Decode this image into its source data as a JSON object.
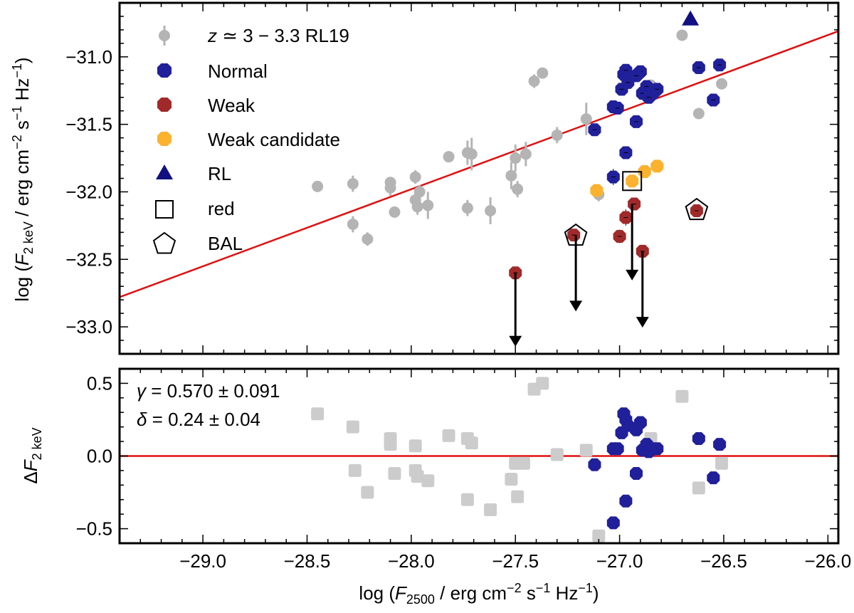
{
  "chart_data": [
    {
      "type": "scatter",
      "panel": "top",
      "ylabel": "log (F_2 keV / erg cm^-2 s^-1 Hz^-1)",
      "xlim": [
        -29.4,
        -25.95
      ],
      "ylim": [
        -33.2,
        -30.6
      ],
      "yticks": [
        -33.0,
        -32.5,
        -32.0,
        -31.5,
        -31.0
      ],
      "ytick_labels": [
        "−33.0",
        "−32.5",
        "−32.0",
        "−31.5",
        "−31.0"
      ],
      "fit_line": {
        "name": "relation",
        "color": "#e01010",
        "points": [
          [
            -29.4,
            -32.78
          ],
          [
            -25.95,
            -30.81
          ]
        ]
      },
      "legend": {
        "placement": "top-left",
        "entries": [
          {
            "key": "rl19",
            "label": "z ≃ 3 − 3.3 RL19",
            "label_italic": "z",
            "label_rest": " ≃ 3 − 3.3 RL19"
          },
          {
            "key": "normal",
            "label": "Normal"
          },
          {
            "key": "weak",
            "label": "Weak"
          },
          {
            "key": "weakcand",
            "label": "Weak candidate"
          },
          {
            "key": "rl",
            "label": "RL"
          },
          {
            "key": "red",
            "label": "red"
          },
          {
            "key": "bal",
            "label": "BAL"
          }
        ]
      },
      "series": [
        {
          "name": "RL19",
          "key": "rl19",
          "color": "#b4b4b4",
          "points": [
            [
              -28.45,
              -31.96,
              0.02
            ],
            [
              -28.28,
              -31.94,
              0.06
            ],
            [
              -28.28,
              -32.24,
              0.06
            ],
            [
              -28.21,
              -32.35,
              0.05
            ],
            [
              -28.1,
              -31.93,
              0.04
            ],
            [
              -28.1,
              -31.97,
              0.06
            ],
            [
              -28.08,
              -32.15,
              0.03
            ],
            [
              -27.98,
              -31.89,
              0.05
            ],
            [
              -27.98,
              -32.06,
              0.06
            ],
            [
              -27.96,
              -32.0,
              0.05
            ],
            [
              -27.97,
              -32.11,
              0.06
            ],
            [
              -27.92,
              -32.1,
              0.1
            ],
            [
              -27.82,
              -31.74,
              0.04
            ],
            [
              -27.73,
              -31.71,
              0.09
            ],
            [
              -27.71,
              -31.72,
              0.12
            ],
            [
              -27.73,
              -32.12,
              0.06
            ],
            [
              -27.62,
              -32.14,
              0.1
            ],
            [
              -27.52,
              -31.88,
              0.1
            ],
            [
              -27.5,
              -31.75,
              0.1
            ],
            [
              -27.49,
              -31.98,
              0.06
            ],
            [
              -27.45,
              -31.72,
              0.09
            ],
            [
              -27.41,
              -31.18,
              0.05
            ],
            [
              -27.37,
              -31.12,
              0.02
            ],
            [
              -27.3,
              -31.58,
              0.06
            ],
            [
              -27.16,
              -31.46,
              0.12
            ],
            [
              -27.1,
              -32.02,
              0.05
            ],
            [
              -26.85,
              -31.21,
              0.03
            ],
            [
              -26.7,
              -30.84,
              0.01
            ],
            [
              -26.62,
              -31.42,
              0.02
            ],
            [
              -26.51,
              -31.2,
              0.02
            ]
          ]
        },
        {
          "name": "Normal",
          "key": "normal",
          "color": "#20209a",
          "points": [
            [
              -27.12,
              -31.54,
              0.02
            ],
            [
              -27.03,
              -31.37,
              0.02
            ],
            [
              -27.01,
              -31.38,
              0.02
            ],
            [
              -26.98,
              -31.13,
              0.02
            ],
            [
              -26.99,
              -31.24,
              0.02
            ],
            [
              -26.97,
              -31.1,
              0.02
            ],
            [
              -26.96,
              -31.19,
              0.02
            ],
            [
              -26.9,
              -31.11,
              0.02
            ],
            [
              -26.92,
              -31.14,
              0.02
            ],
            [
              -26.92,
              -31.48,
              0.02
            ],
            [
              -26.89,
              -31.27,
              0.02
            ],
            [
              -26.87,
              -31.22,
              0.02
            ],
            [
              -26.84,
              -31.27,
              0.02
            ],
            [
              -26.82,
              -31.24,
              0.02
            ],
            [
              -26.86,
              -31.3,
              0.02
            ],
            [
              -26.62,
              -31.08,
              0.02
            ],
            [
              -26.52,
              -31.06,
              0.02
            ],
            [
              -26.55,
              -31.32,
              0.02
            ],
            [
              -26.97,
              -31.71,
              0.02
            ],
            [
              -27.03,
              -31.89,
              0.06
            ]
          ]
        },
        {
          "name": "Weak",
          "key": "weak",
          "color": "#a02a2a",
          "points": [
            [
              -27.5,
              -32.6,
              0.0
            ],
            [
              -27.22,
              -32.32,
              0.0
            ],
            [
              -27.0,
              -32.33,
              0.05
            ],
            [
              -26.97,
              -32.19,
              0.06
            ],
            [
              -26.93,
              -32.09,
              0.0
            ],
            [
              -26.89,
              -32.44,
              0.03
            ],
            [
              -26.63,
              -32.14,
              0.02
            ]
          ]
        },
        {
          "name": "Weak candidate",
          "key": "weakcand",
          "color": "#fbb22e",
          "points": [
            [
              -27.11,
              -31.99,
              0.03
            ],
            [
              -26.94,
              -31.92,
              0.02
            ],
            [
              -26.88,
              -31.85,
              0.02
            ],
            [
              -26.82,
              -31.81,
              0.02
            ]
          ]
        },
        {
          "name": "RL",
          "key": "rl",
          "color": "#101080",
          "points": [
            [
              -26.66,
              -30.72
            ]
          ]
        }
      ],
      "upper_limits": [
        {
          "x": -27.5,
          "from": -32.6,
          "to": -33.13
        },
        {
          "x": -27.21,
          "from": -32.32,
          "to": -32.87
        },
        {
          "x": -26.94,
          "from": -32.09,
          "to": -32.64
        },
        {
          "x": -26.89,
          "from": -32.44,
          "to": -32.99
        }
      ],
      "red_markers": [
        [
          -26.94,
          -31.92
        ]
      ],
      "bal_markers": [
        [
          -27.21,
          -32.32
        ],
        [
          -26.63,
          -32.13
        ]
      ]
    },
    {
      "type": "scatter",
      "panel": "bottom",
      "xlabel": "log (F_2500 / erg cm^-2 s^-1 Hz^-1)",
      "ylabel": "ΔF_2 keV",
      "xlim": [
        -29.4,
        -25.95
      ],
      "ylim": [
        -0.6,
        0.6
      ],
      "xticks": [
        -29.0,
        -28.5,
        -28.0,
        -27.5,
        -27.0,
        -26.5,
        -26.0
      ],
      "xtick_labels": [
        "−29.0",
        "−28.5",
        "−28.0",
        "−27.5",
        "−27.0",
        "−26.5",
        "−26.0"
      ],
      "yticks": [
        -0.5,
        0.0,
        0.5
      ],
      "ytick_labels": [
        "−0.5",
        "0.0",
        "0.5"
      ],
      "zero_line": {
        "y": 0.0,
        "color": "#e01010"
      },
      "annotations": {
        "gamma": {
          "sym": "γ",
          "text": " = 0.570 ± 0.091"
        },
        "delta": {
          "sym": "δ",
          "text": " = 0.24 ± 0.04"
        }
      },
      "series": [
        {
          "name": "RL19 residuals",
          "color": "#cccccc",
          "points": [
            [
              -28.45,
              0.29
            ],
            [
              -28.28,
              0.2
            ],
            [
              -28.27,
              -0.1
            ],
            [
              -28.21,
              -0.25
            ],
            [
              -28.1,
              0.12
            ],
            [
              -28.1,
              0.08
            ],
            [
              -28.08,
              -0.12
            ],
            [
              -27.98,
              0.07
            ],
            [
              -27.98,
              -0.1
            ],
            [
              -27.97,
              -0.14
            ],
            [
              -27.92,
              -0.17
            ],
            [
              -27.82,
              0.14
            ],
            [
              -27.73,
              0.12
            ],
            [
              -27.71,
              0.09
            ],
            [
              -27.73,
              -0.3
            ],
            [
              -27.62,
              -0.37
            ],
            [
              -27.52,
              -0.16
            ],
            [
              -27.5,
              -0.05
            ],
            [
              -27.49,
              -0.28
            ],
            [
              -27.46,
              -0.05
            ],
            [
              -27.41,
              0.46
            ],
            [
              -27.37,
              0.5
            ],
            [
              -27.3,
              0.01
            ],
            [
              -27.16,
              0.04
            ],
            [
              -27.1,
              -0.55
            ],
            [
              -26.85,
              0.12
            ],
            [
              -26.7,
              0.41
            ],
            [
              -26.62,
              -0.22
            ],
            [
              -26.51,
              -0.05
            ]
          ]
        },
        {
          "name": "Normal residuals",
          "color": "#20209a",
          "points": [
            [
              -27.12,
              -0.06
            ],
            [
              -27.03,
              0.05
            ],
            [
              -27.01,
              0.05
            ],
            [
              -26.98,
              0.29
            ],
            [
              -26.99,
              0.16
            ],
            [
              -26.97,
              0.25
            ],
            [
              -26.96,
              0.21
            ],
            [
              -26.9,
              0.23
            ],
            [
              -26.92,
              0.18
            ],
            [
              -26.92,
              -0.12
            ],
            [
              -26.89,
              0.04
            ],
            [
              -26.87,
              0.08
            ],
            [
              -26.84,
              0.05
            ],
            [
              -26.82,
              0.05
            ],
            [
              -26.86,
              0.03
            ],
            [
              -26.62,
              0.12
            ],
            [
              -26.52,
              0.08
            ],
            [
              -26.55,
              -0.15
            ],
            [
              -26.97,
              -0.31
            ],
            [
              -27.03,
              -0.46
            ]
          ]
        }
      ]
    }
  ]
}
